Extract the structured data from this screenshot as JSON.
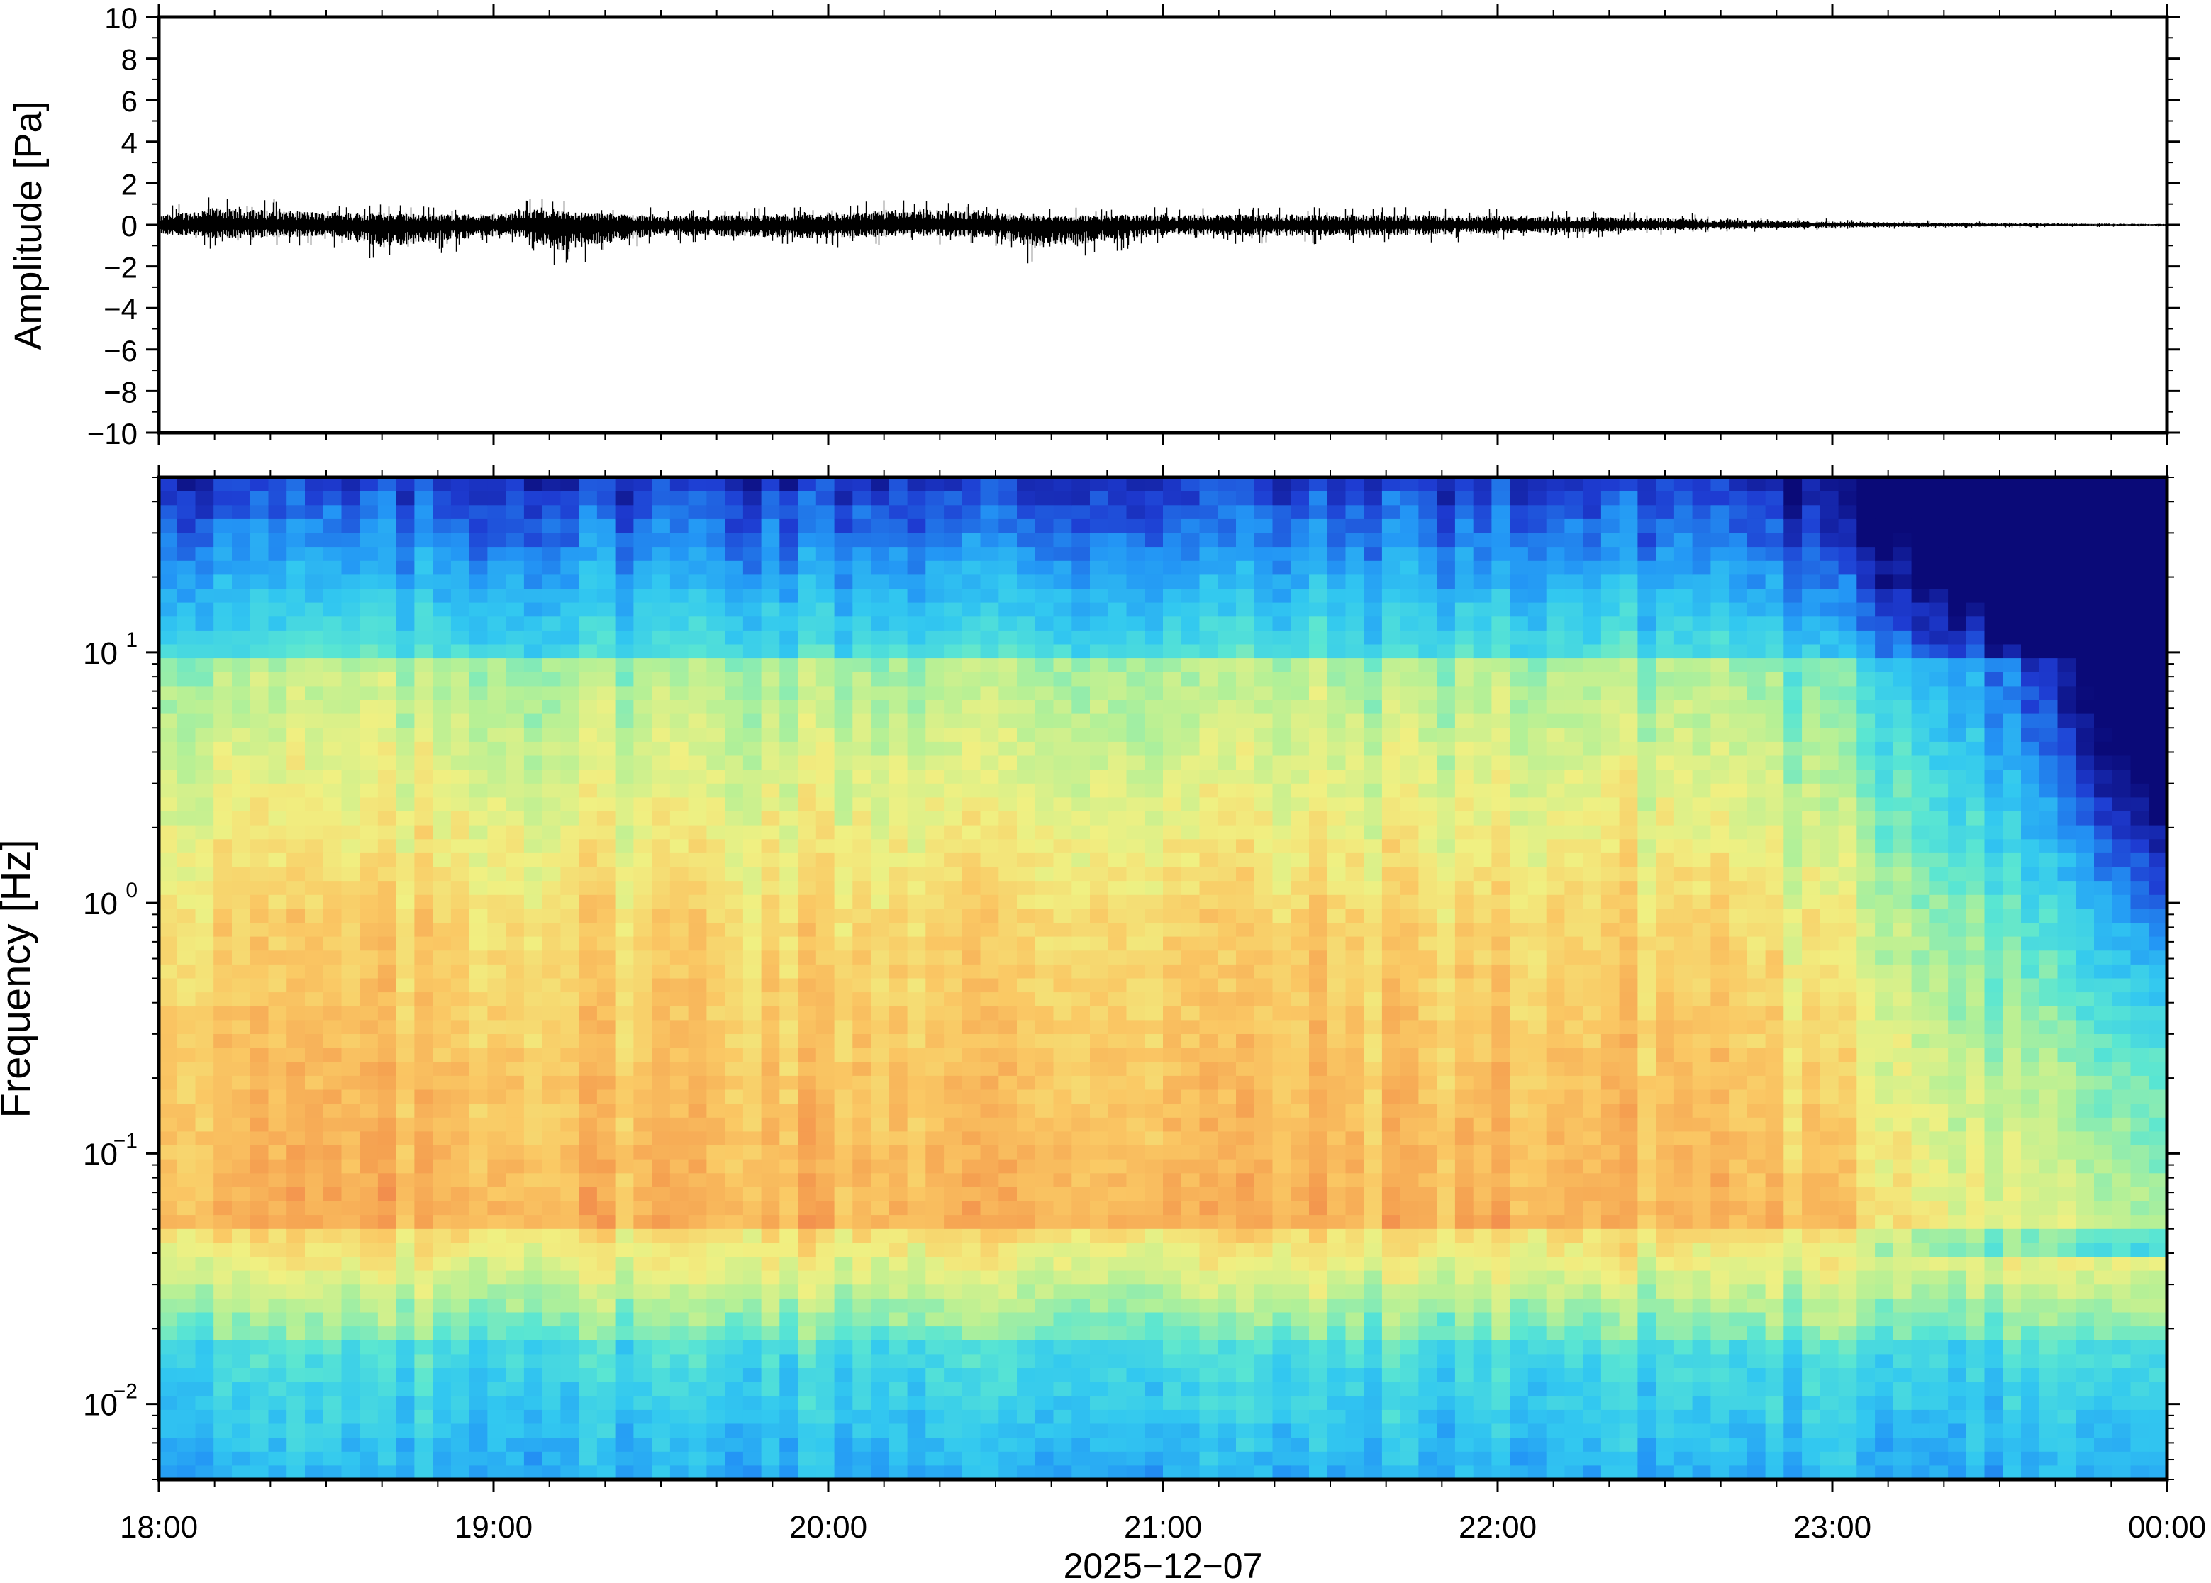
{
  "chart_data": [
    {
      "type": "line",
      "ylabel": "Amplitude [Pa]",
      "ylim": [
        -10,
        10
      ],
      "yticks": [
        "10",
        "8",
        "6",
        "4",
        "2",
        "0",
        "−2",
        "−4",
        "−6",
        "−8",
        "−10"
      ],
      "ytick_values": [
        10,
        8,
        6,
        4,
        2,
        0,
        -2,
        -4,
        -6,
        -8,
        -10
      ],
      "x_range": [
        "18:00",
        "00:00"
      ],
      "series": [
        {
          "values_envelope": [
            {
              "t": "18:00",
              "min": -0.8,
              "max": 0.8
            },
            {
              "t": "18:10",
              "min": -1.2,
              "max": 1.5
            },
            {
              "t": "18:30",
              "min": -1.0,
              "max": 1.1
            },
            {
              "t": "18:40",
              "min": -2.0,
              "max": 1.0
            },
            {
              "t": "19:00",
              "min": -1.0,
              "max": 0.9
            },
            {
              "t": "19:05",
              "min": -1.1,
              "max": 1.4
            },
            {
              "t": "19:12",
              "min": -2.3,
              "max": 1.2
            },
            {
              "t": "19:30",
              "min": -0.9,
              "max": 0.8
            },
            {
              "t": "20:00",
              "min": -1.2,
              "max": 0.9
            },
            {
              "t": "20:15",
              "min": -1.0,
              "max": 1.5
            },
            {
              "t": "20:30",
              "min": -1.1,
              "max": 1.0
            },
            {
              "t": "20:37",
              "min": -2.1,
              "max": 0.8
            },
            {
              "t": "21:00",
              "min": -0.9,
              "max": 0.9
            },
            {
              "t": "21:30",
              "min": -1.0,
              "max": 0.9
            },
            {
              "t": "22:00",
              "min": -0.8,
              "max": 0.8
            },
            {
              "t": "22:30",
              "min": -0.5,
              "max": 0.6
            },
            {
              "t": "23:00",
              "min": -0.25,
              "max": 0.3
            },
            {
              "t": "23:30",
              "min": -0.15,
              "max": 0.15
            },
            {
              "t": "00:00",
              "min": -0.08,
              "max": 0.08
            }
          ]
        }
      ]
    },
    {
      "type": "heatmap",
      "ylabel": "Frequency [Hz]",
      "yscale": "log",
      "ylim": [
        0.005,
        50
      ],
      "yticks": [
        {
          "base": "10",
          "exp": "1",
          "value": 10
        },
        {
          "base": "10",
          "exp": "0",
          "value": 1
        },
        {
          "base": "10",
          "exp": "−1",
          "value": 0.1
        },
        {
          "base": "10",
          "exp": "−2",
          "value": 0.01
        }
      ],
      "x_ticks": [
        "18:00",
        "19:00",
        "20:00",
        "21:00",
        "22:00",
        "23:00",
        "00:00"
      ],
      "xlabel": "2025−12−07",
      "colormap": [
        "#0a0a78",
        "#1e3cd2",
        "#2396f5",
        "#32c8f0",
        "#5ae6d2",
        "#b4f096",
        "#f0f082",
        "#fac864",
        "#f5a050",
        "#eb6446"
      ],
      "grid": false,
      "legend": "none"
    }
  ]
}
